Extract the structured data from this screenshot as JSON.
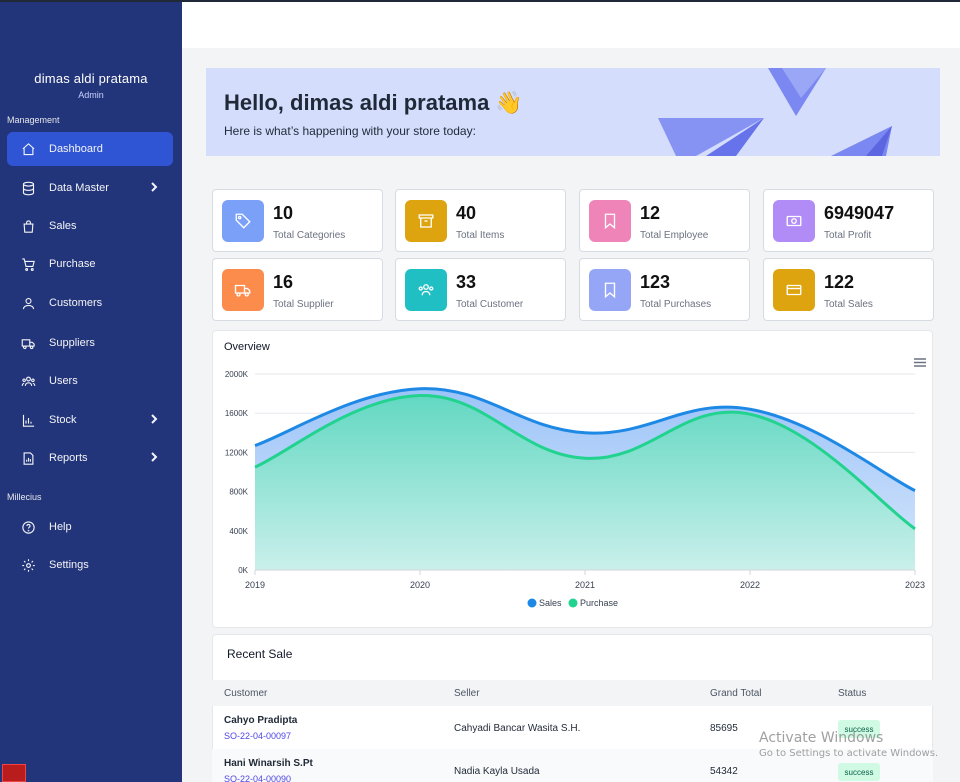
{
  "user": {
    "name": "dimas aldi pratama",
    "role": "Admin"
  },
  "sidebar": {
    "sections": [
      "Management",
      "Millecius"
    ],
    "items": [
      {
        "label": "Dashboard",
        "icon": "home-icon",
        "active": true
      },
      {
        "label": "Data Master",
        "icon": "database-icon",
        "chevron": true
      },
      {
        "label": "Sales",
        "icon": "shopping-bag-icon"
      },
      {
        "label": "Purchase",
        "icon": "cart-icon"
      },
      {
        "label": "Customers",
        "icon": "user-group-icon"
      },
      {
        "label": "Suppliers",
        "icon": "truck-icon"
      },
      {
        "label": "Users",
        "icon": "users-icon"
      },
      {
        "label": "Stock",
        "icon": "chart-icon",
        "chevron": true
      },
      {
        "label": "Reports",
        "icon": "report-icon",
        "chevron": true
      },
      {
        "label": "Help",
        "icon": "help-icon"
      },
      {
        "label": "Settings",
        "icon": "gear-icon"
      }
    ]
  },
  "banner": {
    "title": "Hello, dimas aldi pratama 👋",
    "subtitle": "Here is what’s happening with your store today:"
  },
  "stats": [
    {
      "value": "10",
      "label": "Total Categories",
      "color": "#7aa0f8",
      "icon": "tag-icon"
    },
    {
      "value": "40",
      "label": "Total Items",
      "color": "#dda40f",
      "icon": "archive-icon"
    },
    {
      "value": "12",
      "label": "Total Employee",
      "color": "#ee84b8",
      "icon": "bookmark-icon"
    },
    {
      "value": "6949047",
      "label": "Total Profit",
      "color": "#b28cf6",
      "icon": "money-icon"
    },
    {
      "value": "16",
      "label": "Total Supplier",
      "color": "#fb8c4c",
      "icon": "truck-icon"
    },
    {
      "value": "33",
      "label": "Total Customer",
      "color": "#20bfc4",
      "icon": "users-icon"
    },
    {
      "value": "123",
      "label": "Total Purchases",
      "color": "#95a6f6",
      "icon": "bookmark-icon"
    },
    {
      "value": "122",
      "label": "Total Sales",
      "color": "#dda40f",
      "icon": "credit-card-icon"
    }
  ],
  "chart_data": {
    "type": "area",
    "title": "Overview",
    "x": [
      "2019",
      "2020",
      "2021",
      "2022",
      "2023"
    ],
    "yticks": [
      "2000K",
      "1600K",
      "1200K",
      "800K",
      "400K",
      "0K"
    ],
    "ylim": [
      0,
      2000
    ],
    "series": [
      {
        "name": "Sales",
        "values": [
          1270,
          1850,
          1400,
          1640,
          810
        ],
        "color": "#1e88e5"
      },
      {
        "name": "Purchase",
        "values": [
          1050,
          1780,
          1140,
          1590,
          420
        ],
        "color": "#22d38f"
      }
    ],
    "legend_position": "bottom",
    "grid": true
  },
  "recent_sale": {
    "title": "Recent Sale",
    "columns": [
      "Customer",
      "Seller",
      "Grand Total",
      "Status"
    ],
    "rows": [
      {
        "customer": "Cahyo Pradipta",
        "code": "SO-22-04-00097",
        "seller": "Cahyadi Bancar Wasita S.H.",
        "total": "85695",
        "status": "success"
      },
      {
        "customer": "Hani Winarsih S.Pt",
        "code": "SO-22-04-00090",
        "seller": "Nadia Kayla Usada",
        "total": "54342",
        "status": "success"
      }
    ]
  },
  "watermark": {
    "line1": "Activate Windows",
    "line2": "Go to Settings to activate Windows."
  }
}
